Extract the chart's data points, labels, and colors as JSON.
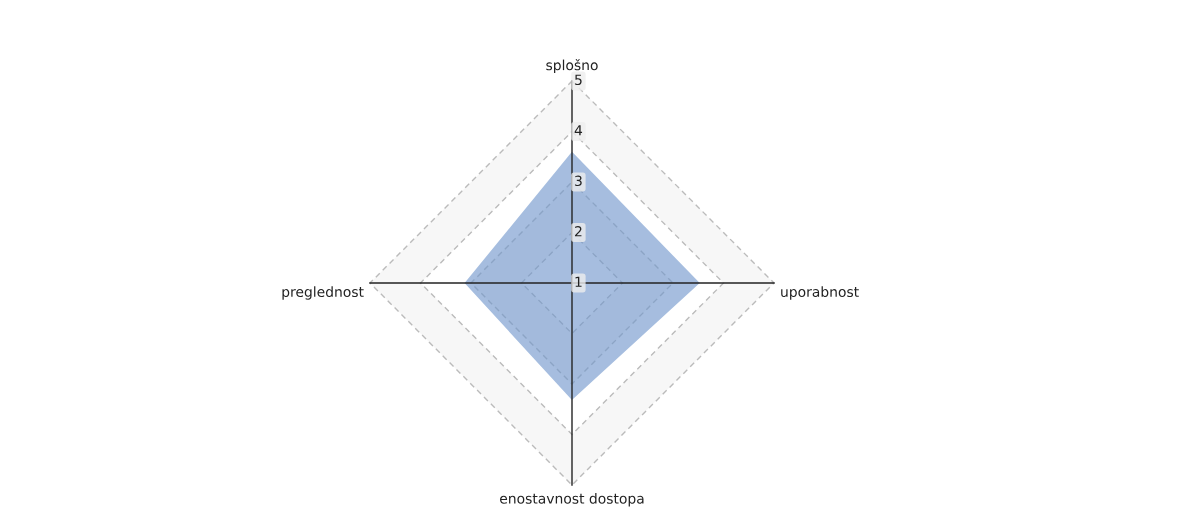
{
  "chart_data": {
    "type": "radar",
    "categories": [
      "splošno",
      "uporabnost",
      "enostavnost dostopa",
      "preglednost"
    ],
    "series": [
      {
        "color": "#7096cc",
        "values": [
          3.57,
          3.5,
          3.29,
          3.1
        ]
      }
    ],
    "ylim": [
      1,
      5
    ],
    "yticks": [
      1,
      2,
      3,
      4,
      5
    ],
    "grid": true,
    "legend": false
  }
}
